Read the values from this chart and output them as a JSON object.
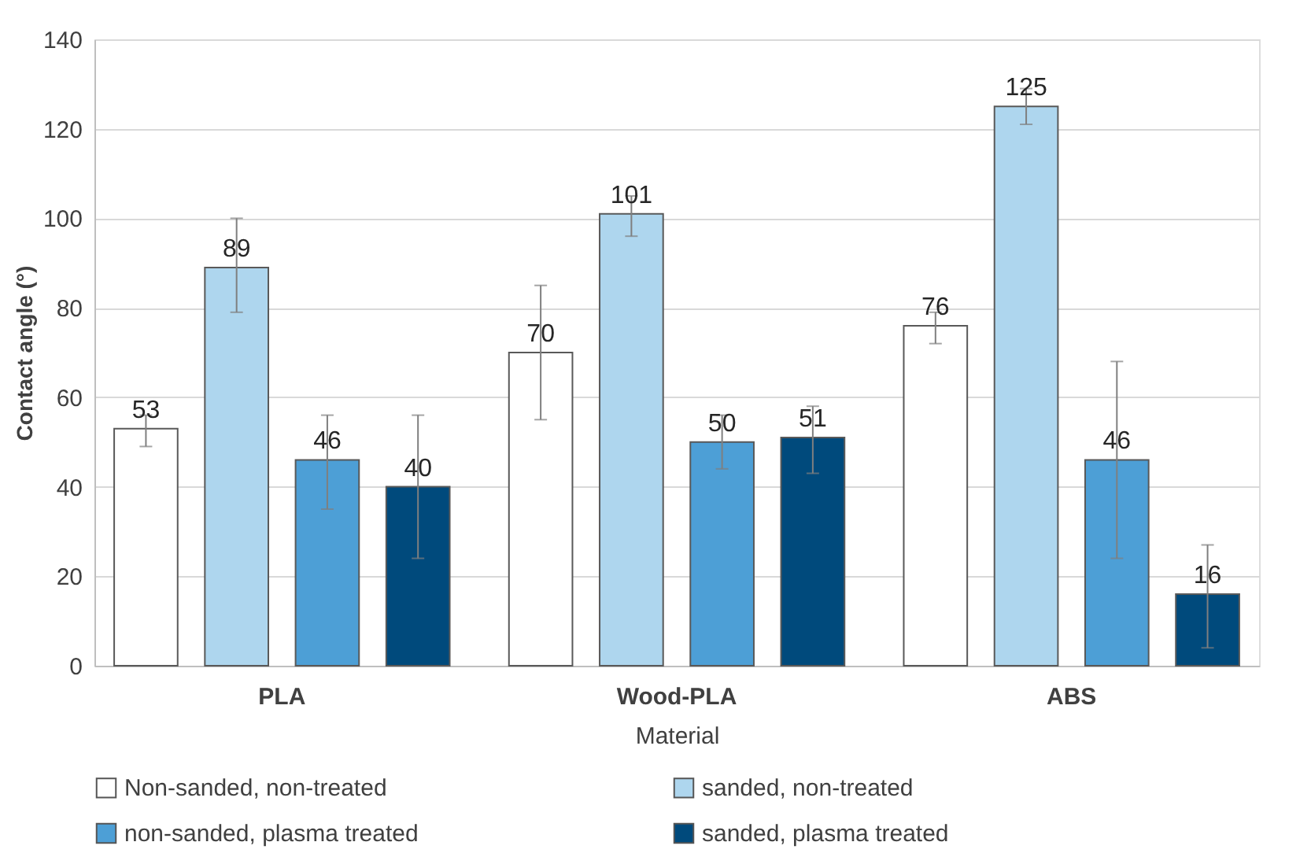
{
  "chart_data": {
    "type": "bar",
    "xlabel": "Material",
    "ylabel": "Contact angle (°)",
    "categories": [
      "PLA",
      "Wood-PLA",
      "ABS"
    ],
    "series": [
      {
        "name": "Non-sanded, non-treated",
        "color": "#ffffff",
        "values": [
          53,
          70,
          76
        ],
        "errors": [
          [
            49,
            56
          ],
          [
            55,
            85
          ],
          [
            72,
            79
          ]
        ]
      },
      {
        "name": "sanded, non-treated",
        "color": "#aed6ee",
        "values": [
          89,
          101,
          125
        ],
        "errors": [
          [
            79,
            100
          ],
          [
            96,
            105
          ],
          [
            121,
            129
          ]
        ]
      },
      {
        "name": "non-sanded, plasma treated",
        "color": "#4d9fd6",
        "values": [
          46,
          50,
          46
        ],
        "errors": [
          [
            35,
            56
          ],
          [
            44,
            56
          ],
          [
            24,
            68
          ]
        ]
      },
      {
        "name": "sanded, plasma treated",
        "color": "#004a7c",
        "values": [
          40,
          51,
          16
        ],
        "errors": [
          [
            24,
            56
          ],
          [
            43,
            58
          ],
          [
            4,
            27
          ]
        ]
      }
    ],
    "ylim": [
      0,
      140
    ],
    "yticks": [
      0,
      20,
      40,
      60,
      80,
      100,
      120,
      140
    ],
    "grid": "y",
    "legend": "bottom",
    "data_labels": true
  }
}
